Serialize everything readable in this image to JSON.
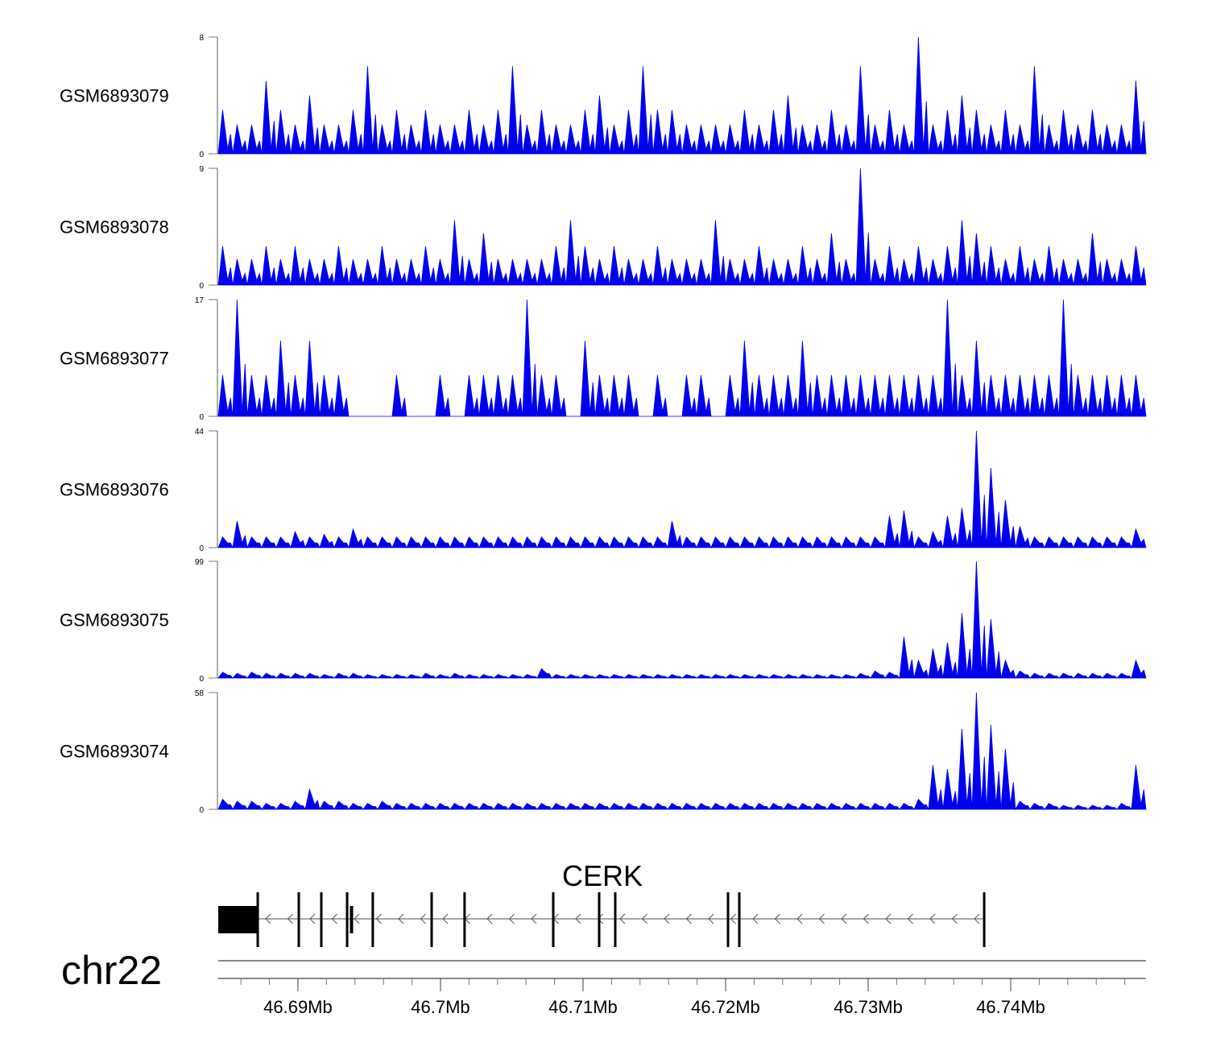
{
  "chart_data": {
    "type": "area",
    "title": "",
    "chromosome": "chr22",
    "xlim_kb": [
      46684.41,
      46749.49
    ],
    "fill_color": "#0000ee",
    "tracks": [
      {
        "name": "GSM6893079",
        "ylim": [
          0,
          8
        ],
        "values": [
          3,
          2,
          2,
          5,
          3,
          2,
          4,
          2,
          2,
          3,
          6,
          2,
          3,
          2,
          3,
          2,
          2,
          3,
          2,
          3,
          6,
          2,
          3,
          2,
          2,
          3,
          4,
          2,
          3,
          6,
          3,
          3,
          2,
          2,
          2,
          2,
          3,
          2,
          3,
          4,
          2,
          2,
          3,
          2,
          6,
          2,
          3,
          2,
          8,
          2,
          3,
          4,
          3,
          2,
          3,
          2,
          6,
          2,
          3,
          2,
          3,
          2,
          2,
          5
        ]
      },
      {
        "name": "GSM6893078",
        "ylim": [
          0,
          9
        ],
        "values": [
          3,
          2,
          2,
          3,
          2,
          3,
          2,
          2,
          3,
          2,
          2,
          3,
          2,
          2,
          3,
          2,
          5,
          2,
          4,
          2,
          2,
          2,
          2,
          3,
          5,
          3,
          2,
          3,
          2,
          2,
          3,
          2,
          2,
          2,
          5,
          2,
          2,
          3,
          2,
          2,
          3,
          2,
          4,
          2,
          9,
          2,
          3,
          2,
          3,
          2,
          3,
          5,
          4,
          3,
          2,
          3,
          2,
          3,
          2,
          2,
          4,
          2,
          2,
          3
        ]
      },
      {
        "name": "GSM6893077",
        "ylim": [
          0,
          17
        ],
        "values": [
          6,
          17,
          6,
          6,
          11,
          6,
          11,
          6,
          6,
          0,
          0,
          0,
          6,
          0,
          0,
          6,
          0,
          6,
          6,
          6,
          6,
          17,
          6,
          6,
          0,
          11,
          6,
          6,
          6,
          0,
          6,
          0,
          6,
          6,
          0,
          6,
          11,
          6,
          6,
          6,
          11,
          6,
          6,
          6,
          6,
          6,
          6,
          6,
          6,
          6,
          17,
          6,
          11,
          6,
          6,
          6,
          6,
          6,
          17,
          6,
          6,
          6,
          6,
          6
        ]
      },
      {
        "name": "GSM6893076",
        "ylim": [
          0,
          44
        ],
        "values": [
          4,
          10,
          4,
          4,
          4,
          6,
          4,
          5,
          4,
          7,
          4,
          4,
          4,
          4,
          4,
          4,
          4,
          4,
          4,
          4,
          4,
          4,
          4,
          4,
          4,
          4,
          4,
          4,
          4,
          4,
          4,
          10,
          4,
          4,
          4,
          4,
          4,
          4,
          4,
          4,
          4,
          4,
          4,
          4,
          4,
          4,
          12,
          14,
          4,
          6,
          12,
          15,
          44,
          30,
          18,
          8,
          4,
          4,
          4,
          4,
          4,
          4,
          4,
          7
        ]
      },
      {
        "name": "GSM6893075",
        "ylim": [
          0,
          99
        ],
        "values": [
          5,
          4,
          5,
          4,
          4,
          4,
          4,
          3,
          4,
          4,
          3,
          3,
          3,
          3,
          4,
          3,
          4,
          3,
          3,
          3,
          3,
          3,
          8,
          3,
          3,
          3,
          3,
          3,
          3,
          3,
          3,
          3,
          3,
          3,
          3,
          3,
          3,
          3,
          3,
          3,
          3,
          3,
          3,
          3,
          4,
          6,
          5,
          35,
          15,
          25,
          30,
          55,
          99,
          50,
          15,
          6,
          4,
          4,
          4,
          4,
          4,
          4,
          4,
          15
        ]
      },
      {
        "name": "GSM6893074",
        "ylim": [
          0,
          58
        ],
        "values": [
          5,
          4,
          4,
          3,
          3,
          4,
          10,
          4,
          4,
          3,
          3,
          4,
          3,
          3,
          3,
          3,
          3,
          3,
          3,
          3,
          3,
          3,
          3,
          3,
          3,
          3,
          3,
          3,
          3,
          3,
          3,
          3,
          3,
          3,
          3,
          3,
          3,
          3,
          3,
          3,
          3,
          3,
          3,
          3,
          3,
          3,
          3,
          3,
          5,
          22,
          20,
          40,
          58,
          42,
          30,
          4,
          3,
          3,
          2,
          2,
          2,
          2,
          3,
          22
        ]
      }
    ],
    "gene": {
      "name": "CERK",
      "strand": "-",
      "utr_kb": [
        46684.41,
        46687.18
      ],
      "exons_kb": [
        46687.18,
        46690.06,
        46691.64,
        46693.45,
        46693.73,
        46695.25,
        46699.38,
        46701.69,
        46707.91,
        46711.13,
        46712.26,
        46720.17,
        46720.96,
        46738.14
      ]
    },
    "axis": {
      "major_ticks_kb": [
        46690,
        46700,
        46710,
        46720,
        46730,
        46740
      ],
      "tick_labels": [
        "46.69Mb",
        "46.7Mb",
        "46.71Mb",
        "46.72Mb",
        "46.73Mb",
        "46.74Mb"
      ],
      "minor_step_kb": 2
    }
  }
}
